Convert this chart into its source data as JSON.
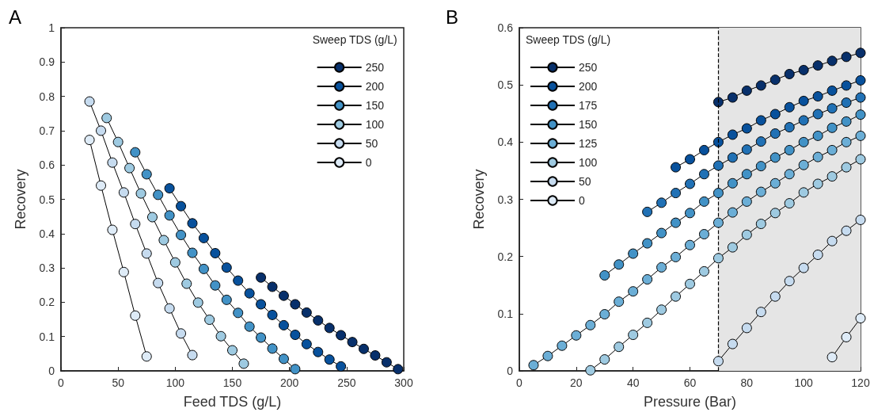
{
  "chart_data": [
    {
      "type": "line",
      "title": "A",
      "xlabel": "Feed TDS (g/L)",
      "ylabel": "Recovery",
      "legend_title": "Sweep TDS (g/L)",
      "legend": "top right",
      "marker": "circle",
      "line_style": "solid",
      "grid": false,
      "xlim": [
        0,
        300
      ],
      "xticks": [
        0,
        50,
        100,
        150,
        200,
        250,
        300
      ],
      "ylim": [
        0,
        1
      ],
      "yticks": [
        0,
        0.1,
        0.2,
        0.3,
        0.4,
        0.5,
        0.6,
        0.7,
        0.8,
        0.9,
        1
      ],
      "series": [
        {
          "name": "250",
          "color": "#08306b",
          "x": [
            175,
            185,
            195,
            205,
            215,
            225,
            235,
            245,
            255,
            265,
            275,
            285,
            295
          ],
          "values": [
            0.272,
            0.245,
            0.219,
            0.194,
            0.17,
            0.147,
            0.125,
            0.104,
            0.084,
            0.064,
            0.045,
            0.025,
            0.005
          ]
        },
        {
          "name": "200",
          "color": "#08519c",
          "x": [
            95,
            105,
            115,
            125,
            135,
            145,
            155,
            165,
            175,
            185,
            195,
            205,
            215,
            225,
            235,
            245
          ],
          "values": [
            0.532,
            0.48,
            0.43,
            0.387,
            0.343,
            0.301,
            0.263,
            0.226,
            0.194,
            0.163,
            0.133,
            0.105,
            0.078,
            0.055,
            0.033,
            0.013
          ]
        },
        {
          "name": "150",
          "color": "#4292c6",
          "x": [
            65,
            75,
            85,
            95,
            105,
            115,
            125,
            135,
            145,
            155,
            165,
            175,
            185,
            195,
            205
          ],
          "values": [
            0.637,
            0.573,
            0.513,
            0.453,
            0.396,
            0.344,
            0.297,
            0.249,
            0.207,
            0.169,
            0.129,
            0.097,
            0.065,
            0.035,
            0.005
          ]
        },
        {
          "name": "100",
          "color": "#9ecae1",
          "x": [
            40,
            50,
            60,
            70,
            80,
            90,
            100,
            110,
            120,
            130,
            140,
            150,
            160
          ],
          "values": [
            0.737,
            0.667,
            0.591,
            0.517,
            0.448,
            0.381,
            0.316,
            0.254,
            0.199,
            0.149,
            0.101,
            0.06,
            0.021
          ]
        },
        {
          "name": "50",
          "color": "#c6dbef",
          "x": [
            25,
            35,
            45,
            55,
            65,
            75,
            85,
            95,
            105,
            115
          ],
          "values": [
            0.785,
            0.7,
            0.607,
            0.52,
            0.428,
            0.342,
            0.256,
            0.182,
            0.109,
            0.046
          ]
        },
        {
          "name": "0",
          "color": "#deebf7",
          "x": [
            25,
            35,
            45,
            55,
            65,
            75
          ],
          "values": [
            0.673,
            0.54,
            0.411,
            0.288,
            0.161,
            0.042
          ]
        }
      ]
    },
    {
      "type": "line",
      "title": "B",
      "xlabel": "Pressure (Bar)",
      "ylabel": "Recovery",
      "legend_title": "Sweep TDS (g/L)",
      "legend": "top left",
      "marker": "circle",
      "line_style": "solid",
      "grid": false,
      "xlim": [
        0,
        120
      ],
      "xticks": [
        0,
        20,
        40,
        60,
        80,
        100,
        120
      ],
      "ylim": [
        0,
        0.6
      ],
      "yticks": [
        0,
        0.1,
        0.2,
        0.3,
        0.4,
        0.5,
        0.6
      ],
      "ref_lines": [
        {
          "axis": "x",
          "value": 70,
          "color": "#000000",
          "line_style": "dashed"
        }
      ],
      "bands": [
        {
          "axis": "x",
          "from": 70,
          "to": 120,
          "color": "#e5e5e5"
        }
      ],
      "series": [
        {
          "name": "250",
          "color": "#08306b",
          "x": [
            70,
            75,
            80,
            85,
            90,
            95,
            100,
            105,
            110,
            115,
            120
          ],
          "values": [
            0.47,
            0.478,
            0.49,
            0.499,
            0.509,
            0.519,
            0.526,
            0.534,
            0.542,
            0.549,
            0.556
          ]
        },
        {
          "name": "200",
          "color": "#08519c",
          "x": [
            55,
            60,
            65,
            70,
            75,
            80,
            85,
            90,
            95,
            100,
            105,
            110,
            115,
            120
          ],
          "values": [
            0.356,
            0.37,
            0.386,
            0.4,
            0.413,
            0.424,
            0.438,
            0.449,
            0.461,
            0.472,
            0.48,
            0.49,
            0.499,
            0.508
          ]
        },
        {
          "name": "175",
          "color": "#2171b5",
          "x": [
            45,
            50,
            55,
            60,
            65,
            70,
            75,
            80,
            85,
            90,
            95,
            100,
            105,
            110,
            115,
            120
          ],
          "values": [
            0.278,
            0.294,
            0.311,
            0.327,
            0.344,
            0.359,
            0.373,
            0.387,
            0.401,
            0.415,
            0.426,
            0.438,
            0.449,
            0.459,
            0.469,
            0.478
          ]
        },
        {
          "name": "150",
          "color": "#4292c6",
          "x": [
            30,
            35,
            40,
            45,
            50,
            55,
            60,
            65,
            70,
            75,
            80,
            85,
            90,
            95,
            100,
            105,
            110,
            115,
            120
          ],
          "values": [
            0.167,
            0.186,
            0.205,
            0.223,
            0.241,
            0.259,
            0.276,
            0.296,
            0.311,
            0.328,
            0.344,
            0.358,
            0.373,
            0.386,
            0.4,
            0.411,
            0.425,
            0.436,
            0.448
          ]
        },
        {
          "name": "125",
          "color": "#6baed6",
          "x": [
            5,
            10,
            15,
            20,
            25,
            30,
            35,
            40,
            45,
            50,
            55,
            60,
            65,
            70,
            75,
            80,
            85,
            90,
            95,
            100,
            105,
            110,
            115,
            120
          ],
          "values": [
            0.01,
            0.026,
            0.044,
            0.062,
            0.08,
            0.099,
            0.121,
            0.139,
            0.16,
            0.181,
            0.199,
            0.22,
            0.239,
            0.259,
            0.277,
            0.296,
            0.313,
            0.328,
            0.344,
            0.36,
            0.374,
            0.386,
            0.4,
            0.411
          ]
        },
        {
          "name": "100",
          "color": "#9ecae1",
          "x": [
            25,
            30,
            35,
            40,
            45,
            50,
            55,
            60,
            65,
            70,
            75,
            80,
            85,
            90,
            95,
            100,
            105,
            110,
            115,
            120
          ],
          "values": [
            0.001,
            0.02,
            0.042,
            0.063,
            0.084,
            0.107,
            0.13,
            0.152,
            0.174,
            0.197,
            0.216,
            0.238,
            0.257,
            0.276,
            0.293,
            0.312,
            0.327,
            0.34,
            0.356,
            0.37
          ]
        },
        {
          "name": "50",
          "color": "#c6dbef",
          "x": [
            70,
            75,
            80,
            85,
            90,
            95,
            100,
            105,
            110,
            115,
            120
          ],
          "values": [
            0.017,
            0.047,
            0.075,
            0.103,
            0.13,
            0.157,
            0.18,
            0.203,
            0.227,
            0.245,
            0.264
          ]
        },
        {
          "name": "0",
          "color": "#deebf7",
          "x": [
            110,
            115,
            120
          ],
          "values": [
            0.024,
            0.059,
            0.092
          ]
        }
      ]
    }
  ]
}
